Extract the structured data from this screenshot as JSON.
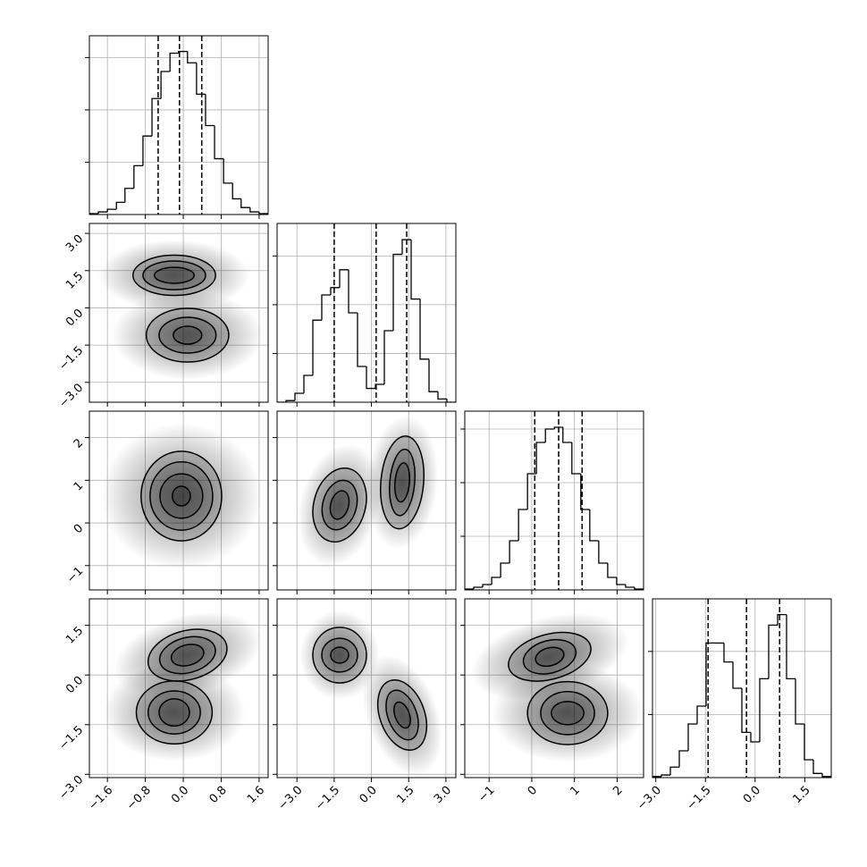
{
  "chart_data": {
    "type": "corner",
    "parameters": [
      {
        "lim": [
          -1.98,
          1.79
        ],
        "ticks": [
          {
            "value": -1.6,
            "label": "−1.6"
          },
          {
            "value": -0.8,
            "label": "−0.8"
          },
          {
            "value": 0.0,
            "label": "0.0"
          },
          {
            "value": 0.8,
            "label": "0.8"
          },
          {
            "value": 1.6,
            "label": "1.6"
          }
        ]
      },
      {
        "lim": [
          -3.8,
          3.4
        ],
        "ticks": [
          {
            "value": -3.0,
            "label": "−3.0"
          },
          {
            "value": -1.5,
            "label": "−1.5"
          },
          {
            "value": 0.0,
            "label": "0.0"
          },
          {
            "value": 1.5,
            "label": "1.5"
          },
          {
            "value": 3.0,
            "label": "3.0"
          }
        ]
      },
      {
        "lim": [
          -1.57,
          2.62
        ],
        "ticks": [
          {
            "value": -1,
            "label": "−1"
          },
          0,
          1,
          2
        ]
      },
      {
        "lim": [
          -3.1,
          2.3
        ],
        "ticks": [
          {
            "value": -3.0,
            "label": "−3.0"
          },
          {
            "value": -1.5,
            "label": "−1.5"
          },
          {
            "value": 0.0,
            "label": "0.0"
          },
          {
            "value": 1.5,
            "label": "1.5"
          }
        ]
      }
    ],
    "histograms": [
      {
        "bins": [
          -1.98,
          -1.79,
          -1.6,
          -1.41,
          -1.23,
          -1.04,
          -0.85,
          -0.66,
          -0.47,
          -0.28,
          -0.1,
          0.09,
          0.28,
          0.47,
          0.66,
          0.85,
          1.04,
          1.22,
          1.41,
          1.6,
          1.79
        ],
        "values": [
          10,
          30,
          60,
          140,
          300,
          560,
          900,
          1330,
          1640,
          1850,
          1870,
          1740,
          1380,
          1020,
          640,
          360,
          180,
          80,
          30,
          10
        ],
        "ylim": [
          0,
          2050
        ],
        "yticks": [
          600,
          1200,
          1800
        ],
        "quantiles": [
          -0.53,
          -0.08,
          0.39
        ]
      },
      {
        "bins": [
          -3.8,
          -3.44,
          -3.08,
          -2.72,
          -2.36,
          -2.0,
          -1.64,
          -1.28,
          -0.92,
          -0.56,
          -0.2,
          0.16,
          0.52,
          0.88,
          1.24,
          1.6,
          1.96,
          2.32,
          2.68,
          3.04,
          3.4
        ],
        "values": [
          0,
          20,
          110,
          330,
          1010,
          1320,
          1410,
          1630,
          1100,
          440,
          170,
          220,
          880,
          1820,
          2000,
          1270,
          530,
          130,
          40,
          0
        ],
        "ylim": [
          0,
          2200
        ],
        "yticks": [
          600,
          1200,
          1800
        ],
        "quantiles": [
          -1.5,
          0.19,
          1.42
        ]
      },
      {
        "bins": [
          -1.57,
          -1.36,
          -1.15,
          -0.94,
          -0.73,
          -0.52,
          -0.31,
          -0.1,
          0.11,
          0.32,
          0.53,
          0.73,
          0.94,
          1.15,
          1.36,
          1.57,
          1.78,
          1.99,
          2.2,
          2.41,
          2.62
        ],
        "values": [
          10,
          30,
          60,
          140,
          300,
          550,
          900,
          1300,
          1650,
          1800,
          1820,
          1650,
          1300,
          900,
          550,
          300,
          140,
          60,
          30,
          10
        ],
        "ylim": [
          0,
          2000
        ],
        "yticks": [
          600,
          1200,
          1800
        ],
        "quantiles": [
          0.07,
          0.63,
          1.18
        ]
      },
      {
        "bins": [
          -3.1,
          -2.83,
          -2.56,
          -2.29,
          -2.02,
          -1.75,
          -1.48,
          -1.21,
          -0.94,
          -0.67,
          -0.4,
          -0.13,
          0.14,
          0.41,
          0.68,
          0.95,
          1.22,
          1.49,
          1.76,
          2.03,
          2.3
        ],
        "values": [
          10,
          25,
          100,
          255,
          510,
          680,
          1280,
          1280,
          1100,
          850,
          430,
          340,
          940,
          1450,
          1550,
          940,
          510,
          170,
          40,
          10
        ],
        "ylim": [
          0,
          1700
        ],
        "yticks": [
          600,
          1200
        ],
        "quantiles": [
          -1.42,
          -0.26,
          0.74
        ]
      }
    ],
    "pairs": [
      {
        "clusters": [
          {
            "cx": -0.19,
            "cy": 1.31,
            "rx": [
              1.6,
              0.87,
              0.66,
              0.42
            ],
            "ry": [
              1.44,
              0.81,
              0.58,
              0.32
            ],
            "angle": 0
          },
          {
            "cx": 0.09,
            "cy": -1.1,
            "rx": [
              1.6,
              0.87,
              0.6,
              0.3
            ],
            "ry": [
              1.8,
              1.08,
              0.72,
              0.36
            ],
            "angle": 0
          }
        ]
      },
      {
        "clusters": [
          {
            "cx": -0.04,
            "cy": 0.63,
            "rx": [
              1.7,
              0.85,
              0.66,
              0.45,
              0.19
            ],
            "ry": [
              1.72,
              1.05,
              0.8,
              0.52,
              0.23
            ],
            "angle": 0
          }
        ]
      },
      {
        "clusters": [
          {
            "cx": -1.28,
            "cy": 0.42,
            "rx": [
              1.6,
              1.04,
              0.68,
              0.36
            ],
            "ry": [
              1.47,
              0.88,
              0.59,
              0.34
            ],
            "angle": 15
          },
          {
            "cx": 1.24,
            "cy": 0.95,
            "rx": [
              1.44,
              0.86,
              0.5,
              0.29
            ],
            "ry": [
              1.57,
              1.09,
              0.78,
              0.46
            ],
            "angle": 5
          }
        ]
      },
      {
        "clusters": [
          {
            "cx": 0.09,
            "cy": 0.6,
            "rx": [
              1.6,
              0.85,
              0.6,
              0.35
            ],
            "ry": [
              1.2,
              0.74,
              0.53,
              0.31
            ],
            "angle": -15
          },
          {
            "cx": -0.19,
            "cy": -1.13,
            "rx": [
              1.5,
              0.8,
              0.55,
              0.32
            ],
            "ry": [
              1.49,
              0.95,
              0.65,
              0.41
            ],
            "angle": 0
          }
        ]
      },
      {
        "clusters": [
          {
            "cx": -1.28,
            "cy": 0.6,
            "rx": [
              1.6,
              1.08,
              0.72,
              0.36
            ],
            "ry": [
              1.35,
              0.84,
              0.51,
              0.24
            ],
            "angle": 0
          },
          {
            "cx": 1.24,
            "cy": -1.21,
            "rx": [
              1.44,
              0.9,
              0.58,
              0.29
            ],
            "ry": [
              1.9,
              1.1,
              0.78,
              0.41
            ],
            "angle": -20
          }
        ]
      },
      {
        "clusters": [
          {
            "cx": 0.42,
            "cy": 0.55,
            "rx": [
              1.9,
              0.99,
              0.63,
              0.34
            ],
            "ry": [
              1.2,
              0.68,
              0.49,
              0.27
            ],
            "angle": -15
          },
          {
            "cx": 0.84,
            "cy": -1.15,
            "rx": [
              1.78,
              0.94,
              0.63,
              0.38
            ],
            "ry": [
              1.49,
              0.95,
              0.65,
              0.35
            ],
            "angle": 0
          }
        ]
      }
    ]
  }
}
